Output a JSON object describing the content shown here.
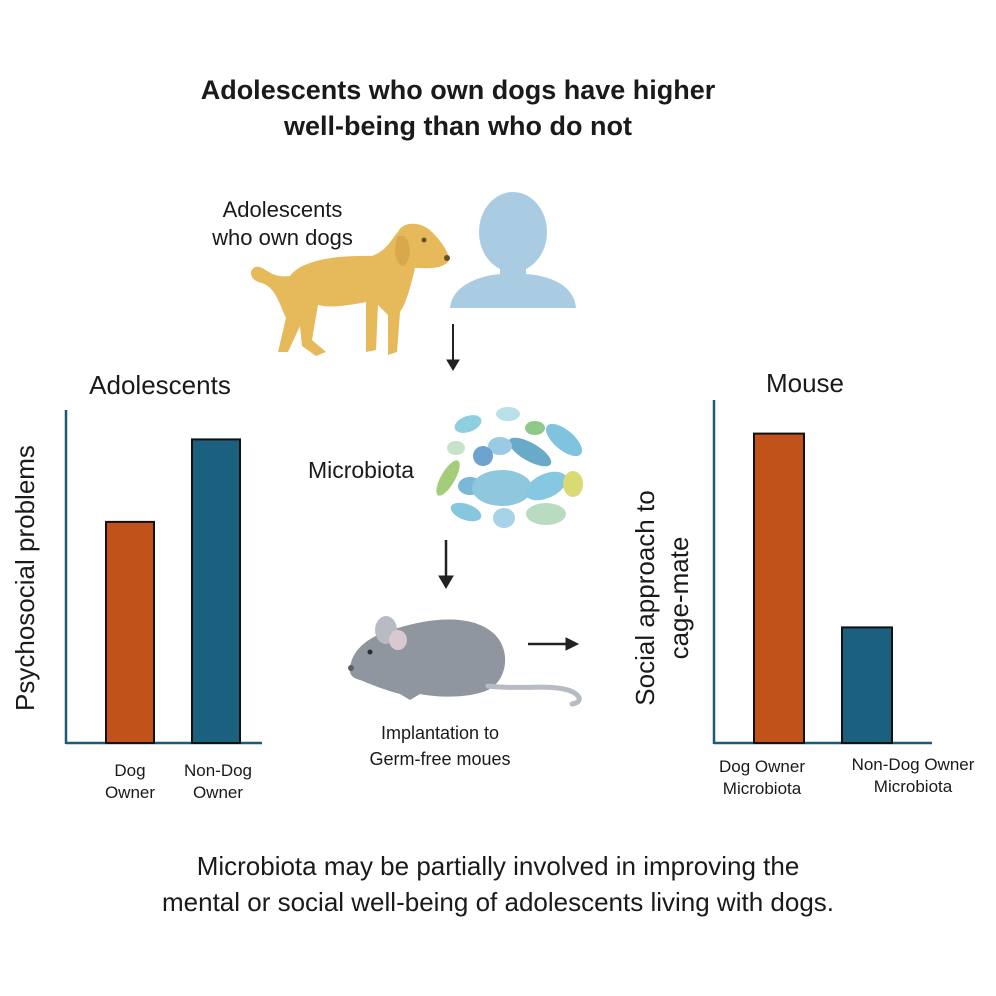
{
  "title": {
    "line1": "Adolescents who own dogs have higher",
    "line2": "well-being than who do not"
  },
  "top_group": {
    "label_line1": "Adolescents",
    "label_line2": "who own dogs"
  },
  "microbiota": {
    "label": "Microbiota"
  },
  "mouse_step": {
    "label_line1": "Implantation to",
    "label_line2": "Germ-free moues"
  },
  "conclusion": {
    "line1": "Microbiota may be partially  involved in improving the",
    "line2": "mental or social well-being of adolescents living with dogs."
  },
  "colors": {
    "dog_owner": "#c0521a",
    "non_dog_owner": "#1c6080",
    "axis": "#1b5a78",
    "dog": "#e6b95a",
    "person": "#a9cce2",
    "mouse": "#8f969f"
  },
  "chart_data": [
    {
      "type": "bar",
      "title": "Adolescents",
      "ylabel": "Psychosocial problems",
      "categories": [
        {
          "line1": "Dog",
          "line2": "Owner"
        },
        {
          "line1": "Non-Dog",
          "line2": "Owner"
        }
      ],
      "values": [
        0.67,
        0.92
      ],
      "ylim": [
        0,
        1
      ]
    },
    {
      "type": "bar",
      "title": "Mouse",
      "ylabel_line1": "Social approach to",
      "ylabel_line2": "cage-mate",
      "categories": [
        {
          "line1": "Dog Owner",
          "line2": "Microbiota"
        },
        {
          "line1": "Non-Dog Owner",
          "line2": "Microbiota"
        }
      ],
      "values": [
        0.91,
        0.34
      ],
      "ylim": [
        0,
        1
      ]
    }
  ]
}
